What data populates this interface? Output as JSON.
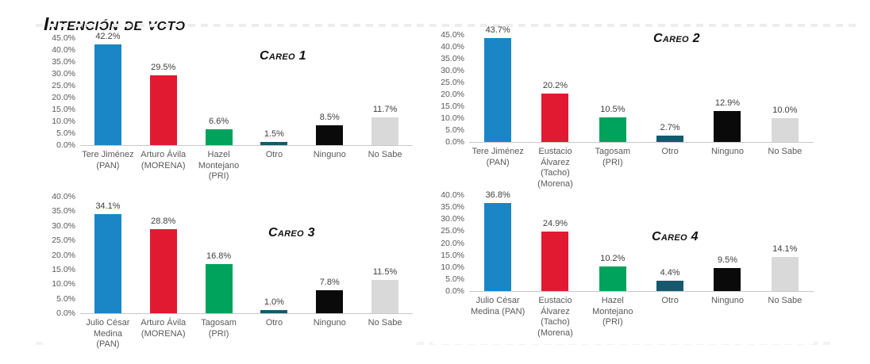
{
  "header": {
    "title": "Intención de voto"
  },
  "colors": {
    "pan_blue": "#1b86c5",
    "morena_red": "#e11a32",
    "pri_green": "#00a35c",
    "otro_teal": "#16596e",
    "ninguno_black": "#0a0a0a",
    "nosabe_gray": "#d9d9d9",
    "axis_line": "#c9c9c9",
    "tick_text": "#595959"
  },
  "chart_data": [
    {
      "type": "bar",
      "title": "Careo 1",
      "categories": [
        "Tere Jiménez (PAN)",
        "Arturo Ávila (MORENA)",
        "Hazel Montejano (PRI)",
        "Otro",
        "Ninguno",
        "No Sabe"
      ],
      "values": [
        42.2,
        29.5,
        6.6,
        1.5,
        8.5,
        11.7
      ],
      "value_labels": [
        "42.2%",
        "29.5%",
        "6.6%",
        "1.5%",
        "8.5%",
        "11.7%"
      ],
      "bar_colors": [
        "#1b86c5",
        "#e11a32",
        "#00a35c",
        "#16596e",
        "#0a0a0a",
        "#d9d9d9"
      ],
      "ylim": [
        0,
        45
      ],
      "ytick_step": 5,
      "ytick_labels": [
        "0.0%",
        "5.0%",
        "10.0%",
        "15.0%",
        "20.0%",
        "25.0%",
        "30.0%",
        "35.0%",
        "40.0%",
        "45.0%"
      ],
      "grid": false,
      "legend": "none"
    },
    {
      "type": "bar",
      "title": "Careo 2",
      "categories": [
        "Tere Jiménez (PAN)",
        "Eustacio Álvarez (Tacho) (Morena)",
        "Tagosam (PRI)",
        "Otro",
        "Ninguno",
        "No Sabe"
      ],
      "values": [
        43.7,
        20.2,
        10.5,
        2.7,
        12.9,
        10.0
      ],
      "value_labels": [
        "43.7%",
        "20.2%",
        "10.5%",
        "2.7%",
        "12.9%",
        "10.0%"
      ],
      "bar_colors": [
        "#1b86c5",
        "#e11a32",
        "#00a35c",
        "#16596e",
        "#0a0a0a",
        "#d9d9d9"
      ],
      "ylim": [
        0,
        45
      ],
      "ytick_step": 5,
      "ytick_labels": [
        "0.0%",
        "5.0%",
        "10.0%",
        "15.0%",
        "20.0%",
        "25.0%",
        "30.0%",
        "35.0%",
        "40.0%",
        "45.0%"
      ],
      "grid": false,
      "legend": "none"
    },
    {
      "type": "bar",
      "title": "Careo 3",
      "categories": [
        "Julio César Medina (PAN)",
        "Arturo Ávila (MORENA)",
        "Tagosam (PRI)",
        "Otro",
        "Ninguno",
        "No Sabe"
      ],
      "values": [
        34.1,
        28.8,
        16.8,
        1.0,
        7.8,
        11.5
      ],
      "value_labels": [
        "34.1%",
        "28.8%",
        "16.8%",
        "1.0%",
        "7.8%",
        "11.5%"
      ],
      "bar_colors": [
        "#1b86c5",
        "#e11a32",
        "#00a35c",
        "#16596e",
        "#0a0a0a",
        "#d9d9d9"
      ],
      "ylim": [
        0,
        40
      ],
      "ytick_step": 5,
      "ytick_labels": [
        "0.0%",
        "5.0%",
        "10.0%",
        "15.0%",
        "20.0%",
        "25.0%",
        "30.0%",
        "35.0%",
        "40.0%"
      ],
      "grid": false,
      "legend": "none"
    },
    {
      "type": "bar",
      "title": "Careo 4",
      "categories": [
        "Julio César Medina (PAN)",
        "Eustacio Álvarez (Tacho) (Morena)",
        "Hazel Montejano (PRI)",
        "Otro",
        "Ninguno",
        "No Sabe"
      ],
      "values": [
        36.8,
        24.9,
        10.2,
        4.4,
        9.5,
        14.1
      ],
      "value_labels": [
        "36.8%",
        "24.9%",
        "10.2%",
        "4.4%",
        "9.5%",
        "14.1%"
      ],
      "bar_colors": [
        "#1b86c5",
        "#e11a32",
        "#00a35c",
        "#16596e",
        "#0a0a0a",
        "#d9d9d9"
      ],
      "ylim": [
        0,
        40
      ],
      "ytick_step": 5,
      "ytick_labels": [
        "0.0%",
        "5.0%",
        "10.0%",
        "15.0%",
        "20.0%",
        "25.0%",
        "30.0%",
        "35.0%",
        "40.0%"
      ],
      "grid": false,
      "legend": "none"
    }
  ]
}
